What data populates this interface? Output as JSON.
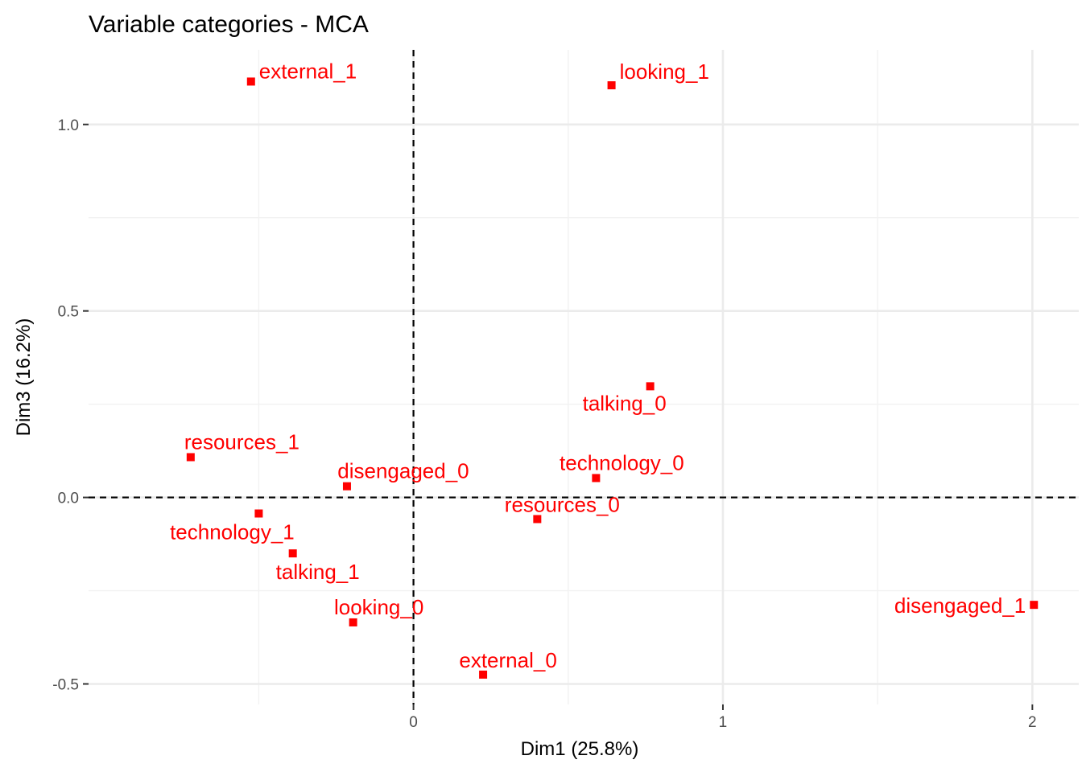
{
  "chart_data": {
    "type": "scatter",
    "title": "Variable categories - MCA",
    "xlabel": "Dim1 (25.8%)",
    "ylabel": "Dim3 (16.2%)",
    "xlim": [
      -1.05,
      2.15
    ],
    "ylim": [
      -0.555,
      1.2
    ],
    "x_ticks": [
      0,
      1,
      2
    ],
    "y_ticks": [
      -0.5,
      0,
      0.5,
      1.0
    ],
    "x_tick_labels": [
      "0",
      "1",
      "2"
    ],
    "y_tick_labels": [
      "-0.5",
      "0.0",
      "0.5",
      "1.0"
    ],
    "x_minor_ticks": [
      -0.5,
      0.5,
      1.5
    ],
    "y_minor_ticks": [
      -0.25,
      0.25,
      0.75
    ],
    "grid": true,
    "reference_lines": {
      "x": 0,
      "y": 0
    },
    "point_color": "#ff0000",
    "points": [
      {
        "label": "external_1",
        "x": -0.525,
        "y": 1.115
      },
      {
        "label": "looking_1",
        "x": 0.64,
        "y": 1.105
      },
      {
        "label": "talking_0",
        "x": 0.765,
        "y": 0.298
      },
      {
        "label": "resources_1",
        "x": -0.72,
        "y": 0.108
      },
      {
        "label": "disengaged_0",
        "x": -0.215,
        "y": 0.03
      },
      {
        "label": "technology_0",
        "x": 0.59,
        "y": 0.052
      },
      {
        "label": "resources_0",
        "x": 0.4,
        "y": -0.058
      },
      {
        "label": "technology_1",
        "x": -0.5,
        "y": -0.043
      },
      {
        "label": "talking_1",
        "x": -0.39,
        "y": -0.15
      },
      {
        "label": "looking_0",
        "x": -0.195,
        "y": -0.335
      },
      {
        "label": "external_0",
        "x": 0.225,
        "y": -0.475
      },
      {
        "label": "disengaged_1",
        "x": 2.005,
        "y": -0.288
      }
    ]
  }
}
